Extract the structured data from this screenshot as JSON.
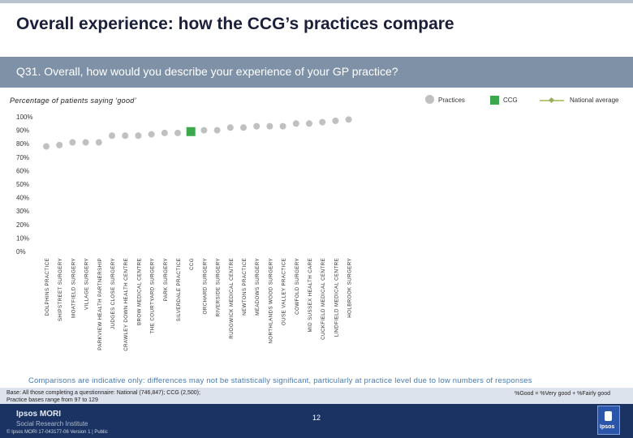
{
  "header": {
    "title": "Overall experience: how the CCG’s practices compare",
    "question": "Q31. Overall, how would you describe your experience of your GP practice?"
  },
  "subtitle": "Percentage of patients saying ‘good’",
  "legend": {
    "practices": "Practices",
    "ccg": "CCG",
    "national": "National average"
  },
  "colors": {
    "practice_marker": "#c0c0c0",
    "ccg_marker": "#3aa84b",
    "national_line": "#b9ca7e",
    "header_band": "#7e91a7",
    "footer": "#1a3362",
    "note_text": "#4a7bb0"
  },
  "chart_data": {
    "type": "scatter",
    "categories": [
      "DOLPHINS PRACTICE",
      "SHIPSTREET SURGERY",
      "MOATFIELD SURGERY",
      "VILLAGE SURGERY",
      "PARKVIEW HEALTH PARTNERSHIP",
      "JUDGES CLOSE SURGERY",
      "CRAWLEY DOWN HEALTH CENTRE",
      "BROW MEDICAL CENTRE",
      "THE COURTYARD SURGERY",
      "PARK SURGERY",
      "SILVERDALE PRACTICE",
      "CCG",
      "ORCHARD SURGERY",
      "RIVERSIDE SURGERY",
      "RUDGWICK MEDICAL CENTRE",
      "NEWTONS PRACTICE",
      "MEADOWS SURGERY",
      "NORTHLANDS WOOD SURGERY",
      "OUSE VALLEY PRACTICE",
      "COWFOLD SURGERY",
      "MID SUSSEX HEALTH CARE",
      "CUCKFIELD MEDICAL CENTRE",
      "LINDFIELD MEDICAL CENTRE",
      "HOLBROOK SURGERY"
    ],
    "values": [
      78,
      79,
      81,
      81,
      81,
      86,
      86,
      86,
      87,
      88,
      88,
      89,
      90,
      90,
      92,
      92,
      93,
      93,
      93,
      95,
      95,
      96,
      97,
      98
    ],
    "ccg_index": 11,
    "ylim": [
      0,
      100
    ],
    "yticks": [
      "0%",
      "10%",
      "20%",
      "30%",
      "40%",
      "50%",
      "60%",
      "70%",
      "80%",
      "90%",
      "100%"
    ],
    "grid": false
  },
  "notes": {
    "comparison": "Comparisons are indicative only: differences may not be statistically significant, particularly at practice level due to low numbers of responses",
    "base_line1": "Base: All those completing a questionnaire: National (746,847); CCG (2,500);",
    "base_line2": "Practice bases range from 97 to 129",
    "good_definition": "%Good = %Very good + %Fairly good"
  },
  "footer": {
    "brand": "Ipsos MORI",
    "institute": "Social Research Institute",
    "copyright": "© Ipsos MORI      17-043177-06 Version 1 | Public",
    "page_number": "12",
    "logo_text": "Ipsos"
  }
}
